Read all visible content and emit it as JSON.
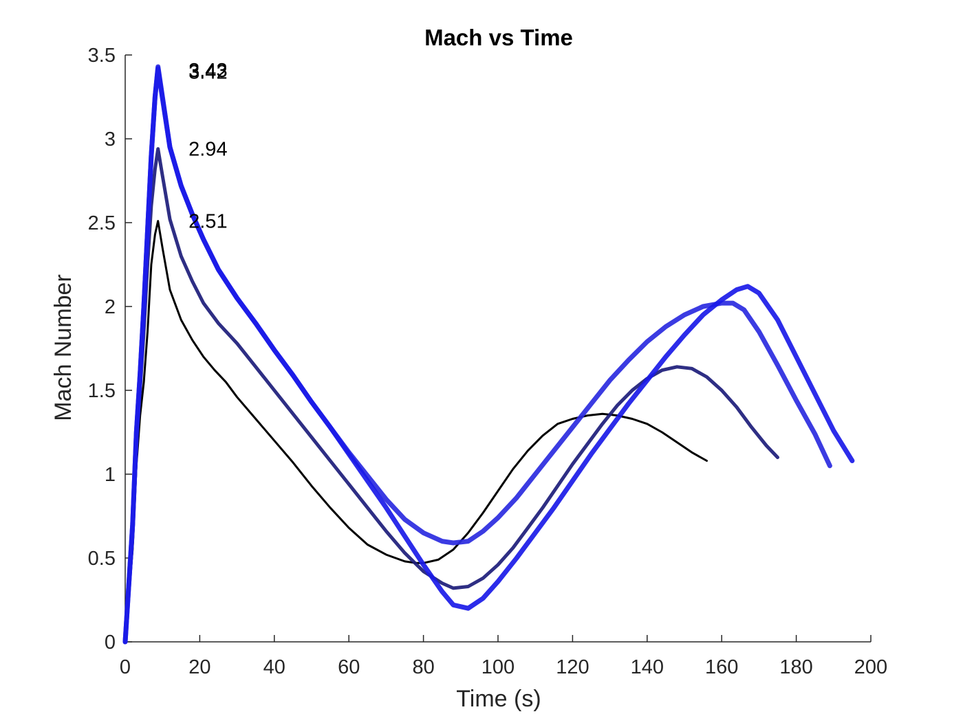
{
  "chart_data": {
    "type": "line",
    "title": "Mach vs Time",
    "xlabel": "Time (s)",
    "ylabel": "Mach Number",
    "xlim": [
      0,
      200
    ],
    "ylim": [
      0,
      3.5
    ],
    "xticks": [
      0,
      20,
      40,
      60,
      80,
      100,
      120,
      140,
      160,
      180,
      200
    ],
    "xtick_labels": [
      "0",
      "20",
      "40",
      "60",
      "80",
      "100",
      "120",
      "140",
      "160",
      "180",
      "200"
    ],
    "yticks": [
      0,
      0.5,
      1,
      1.5,
      2,
      2.5,
      3,
      3.5
    ],
    "ytick_labels": [
      "0",
      "0.5",
      "1",
      "1.5",
      "2",
      "2.5",
      "3",
      "3.5"
    ],
    "grid": false,
    "legend": "none",
    "series": [
      {
        "color": "#000000",
        "width": 3,
        "points": [
          [
            0,
            0
          ],
          [
            2,
            0.55
          ],
          [
            3,
            1.05
          ],
          [
            4,
            1.35
          ],
          [
            5,
            1.55
          ],
          [
            6,
            1.85
          ],
          [
            7,
            2.25
          ],
          [
            8,
            2.43
          ],
          [
            8.8,
            2.51
          ],
          [
            10,
            2.35
          ],
          [
            12,
            2.1
          ],
          [
            15,
            1.92
          ],
          [
            18,
            1.8
          ],
          [
            21,
            1.7
          ],
          [
            24,
            1.62
          ],
          [
            27,
            1.55
          ],
          [
            30,
            1.46
          ],
          [
            35,
            1.33
          ],
          [
            40,
            1.2
          ],
          [
            45,
            1.07
          ],
          [
            50,
            0.93
          ],
          [
            55,
            0.8
          ],
          [
            60,
            0.68
          ],
          [
            65,
            0.58
          ],
          [
            70,
            0.52
          ],
          [
            75,
            0.48
          ],
          [
            78,
            0.47
          ],
          [
            80,
            0.47
          ],
          [
            84,
            0.49
          ],
          [
            88,
            0.55
          ],
          [
            92,
            0.65
          ],
          [
            96,
            0.77
          ],
          [
            100,
            0.9
          ],
          [
            104,
            1.03
          ],
          [
            108,
            1.14
          ],
          [
            112,
            1.23
          ],
          [
            116,
            1.3
          ],
          [
            120,
            1.33
          ],
          [
            124,
            1.35
          ],
          [
            128,
            1.36
          ],
          [
            132,
            1.35
          ],
          [
            136,
            1.33
          ],
          [
            140,
            1.3
          ],
          [
            144,
            1.25
          ],
          [
            148,
            1.19
          ],
          [
            152,
            1.13
          ],
          [
            156,
            1.08
          ]
        ]
      },
      {
        "color": "#1c1c7a",
        "width": 5,
        "points": [
          [
            0,
            0
          ],
          [
            2,
            0.62
          ],
          [
            3,
            1.15
          ],
          [
            4,
            1.5
          ],
          [
            5,
            1.85
          ],
          [
            6,
            2.25
          ],
          [
            7,
            2.6
          ],
          [
            8,
            2.82
          ],
          [
            8.8,
            2.94
          ],
          [
            10,
            2.78
          ],
          [
            12,
            2.52
          ],
          [
            15,
            2.3
          ],
          [
            18,
            2.15
          ],
          [
            21,
            2.02
          ],
          [
            25,
            1.9
          ],
          [
            30,
            1.78
          ],
          [
            35,
            1.64
          ],
          [
            40,
            1.5
          ],
          [
            45,
            1.36
          ],
          [
            50,
            1.22
          ],
          [
            55,
            1.08
          ],
          [
            60,
            0.94
          ],
          [
            65,
            0.8
          ],
          [
            70,
            0.66
          ],
          [
            75,
            0.53
          ],
          [
            80,
            0.42
          ],
          [
            85,
            0.35
          ],
          [
            88,
            0.32
          ],
          [
            92,
            0.33
          ],
          [
            96,
            0.38
          ],
          [
            100,
            0.46
          ],
          [
            104,
            0.56
          ],
          [
            108,
            0.68
          ],
          [
            112,
            0.8
          ],
          [
            116,
            0.93
          ],
          [
            120,
            1.06
          ],
          [
            124,
            1.18
          ],
          [
            128,
            1.3
          ],
          [
            132,
            1.41
          ],
          [
            136,
            1.5
          ],
          [
            140,
            1.57
          ],
          [
            144,
            1.62
          ],
          [
            148,
            1.64
          ],
          [
            152,
            1.63
          ],
          [
            156,
            1.58
          ],
          [
            160,
            1.5
          ],
          [
            164,
            1.4
          ],
          [
            168,
            1.28
          ],
          [
            172,
            1.17
          ],
          [
            175,
            1.1
          ]
        ]
      },
      {
        "color": "#2a2ae0",
        "width": 7,
        "points": [
          [
            0,
            0
          ],
          [
            2,
            0.7
          ],
          [
            3,
            1.25
          ],
          [
            4,
            1.6
          ],
          [
            5,
            2.0
          ],
          [
            6,
            2.45
          ],
          [
            7,
            2.9
          ],
          [
            8,
            3.25
          ],
          [
            8.8,
            3.43
          ],
          [
            10,
            3.25
          ],
          [
            12,
            2.95
          ],
          [
            15,
            2.72
          ],
          [
            18,
            2.55
          ],
          [
            21,
            2.4
          ],
          [
            25,
            2.22
          ],
          [
            30,
            2.05
          ],
          [
            35,
            1.9
          ],
          [
            40,
            1.74
          ],
          [
            45,
            1.59
          ],
          [
            50,
            1.43
          ],
          [
            55,
            1.28
          ],
          [
            60,
            1.13
          ],
          [
            65,
            0.99
          ],
          [
            70,
            0.85
          ],
          [
            75,
            0.73
          ],
          [
            80,
            0.65
          ],
          [
            85,
            0.6
          ],
          [
            88,
            0.59
          ],
          [
            92,
            0.6
          ],
          [
            96,
            0.66
          ],
          [
            100,
            0.74
          ],
          [
            105,
            0.86
          ],
          [
            110,
            1.0
          ],
          [
            115,
            1.14
          ],
          [
            120,
            1.28
          ],
          [
            125,
            1.42
          ],
          [
            130,
            1.56
          ],
          [
            135,
            1.68
          ],
          [
            140,
            1.79
          ],
          [
            145,
            1.88
          ],
          [
            150,
            1.95
          ],
          [
            155,
            2.0
          ],
          [
            160,
            2.02
          ],
          [
            163,
            2.02
          ],
          [
            166,
            1.98
          ],
          [
            170,
            1.85
          ],
          [
            175,
            1.65
          ],
          [
            180,
            1.44
          ],
          [
            185,
            1.24
          ],
          [
            189,
            1.05
          ]
        ]
      },
      {
        "color": "#1a1ae8",
        "width": 7,
        "points": [
          [
            0,
            0
          ],
          [
            2,
            0.7
          ],
          [
            3,
            1.25
          ],
          [
            4,
            1.6
          ],
          [
            5,
            2.0
          ],
          [
            6,
            2.45
          ],
          [
            7,
            2.9
          ],
          [
            8,
            3.25
          ],
          [
            8.8,
            3.42
          ],
          [
            10,
            3.24
          ],
          [
            12,
            2.95
          ],
          [
            15,
            2.72
          ],
          [
            18,
            2.55
          ],
          [
            21,
            2.4
          ],
          [
            25,
            2.22
          ],
          [
            30,
            2.05
          ],
          [
            35,
            1.9
          ],
          [
            40,
            1.74
          ],
          [
            45,
            1.59
          ],
          [
            50,
            1.43
          ],
          [
            55,
            1.28
          ],
          [
            60,
            1.12
          ],
          [
            65,
            0.96
          ],
          [
            70,
            0.8
          ],
          [
            75,
            0.63
          ],
          [
            80,
            0.46
          ],
          [
            85,
            0.3
          ],
          [
            88,
            0.22
          ],
          [
            92,
            0.2
          ],
          [
            96,
            0.26
          ],
          [
            100,
            0.36
          ],
          [
            105,
            0.5
          ],
          [
            110,
            0.65
          ],
          [
            115,
            0.8
          ],
          [
            120,
            0.96
          ],
          [
            125,
            1.12
          ],
          [
            130,
            1.27
          ],
          [
            135,
            1.42
          ],
          [
            140,
            1.56
          ],
          [
            145,
            1.7
          ],
          [
            150,
            1.83
          ],
          [
            155,
            1.95
          ],
          [
            160,
            2.04
          ],
          [
            164,
            2.1
          ],
          [
            167,
            2.12
          ],
          [
            170,
            2.08
          ],
          [
            175,
            1.92
          ],
          [
            180,
            1.7
          ],
          [
            185,
            1.48
          ],
          [
            190,
            1.26
          ],
          [
            195,
            1.08
          ]
        ]
      }
    ],
    "annotations": [
      {
        "text": "3.43",
        "x": 17,
        "y": 3.41
      },
      {
        "text": "3.42",
        "x": 17,
        "y": 3.4
      },
      {
        "text": "2.94",
        "x": 17,
        "y": 2.94
      },
      {
        "text": "2.51",
        "x": 17,
        "y": 2.51
      }
    ]
  }
}
